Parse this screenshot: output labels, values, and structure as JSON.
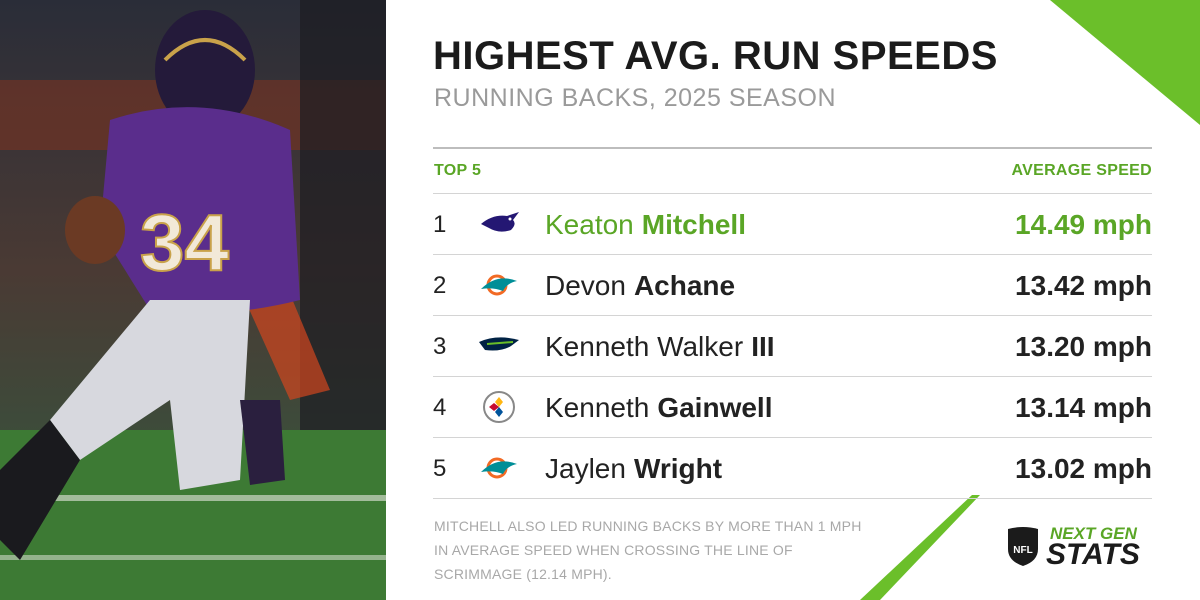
{
  "header": {
    "title": "HIGHEST AVG. RUN SPEEDS",
    "subtitle": "RUNNING BACKS, 2025 SEASON"
  },
  "table": {
    "columns": [
      "TOP 5",
      "AVERAGE SPEED"
    ],
    "rows": [
      {
        "rank": 1,
        "team": "ravens",
        "first": "Keaton",
        "last": "Mitchell",
        "speed": "14.49 mph"
      },
      {
        "rank": 2,
        "team": "dolphins",
        "first": "Devon",
        "last": "Achane",
        "speed": "13.42 mph"
      },
      {
        "rank": 3,
        "team": "seahawks",
        "first": "Kenneth Walker",
        "last": "III",
        "speed": "13.20 mph"
      },
      {
        "rank": 4,
        "team": "steelers",
        "first": "Kenneth",
        "last": "Gainwell",
        "speed": "13.14 mph"
      },
      {
        "rank": 5,
        "team": "dolphins",
        "first": "Jaylen",
        "last": "Wright",
        "speed": "13.02 mph"
      }
    ]
  },
  "footnote": "MITCHELL ALSO LED RUNNING BACKS BY MORE THAN 1 MPH IN AVERAGE SPEED WHEN CROSSING THE LINE OF SCRIMMAGE (12.14 MPH).",
  "brand": {
    "league": "NFL",
    "line1": "NEXT GEN",
    "line2": "STATS"
  }
}
